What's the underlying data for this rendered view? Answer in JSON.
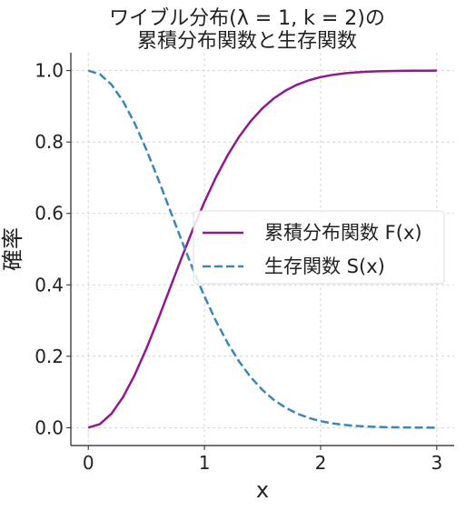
{
  "chart_data": {
    "type": "line",
    "title_lines": [
      "ワイブル分布(λ = 1, k = 2)の",
      "累積分布関数と生存関数"
    ],
    "xlabel": "x",
    "ylabel": "確率",
    "xlim": [
      -0.15,
      3.15
    ],
    "ylim": [
      -0.05,
      1.05
    ],
    "xticks": [
      0,
      1,
      2,
      3
    ],
    "xtick_labels": [
      "0",
      "1",
      "2",
      "3"
    ],
    "yticks": [
      0.0,
      0.2,
      0.4,
      0.6,
      0.8,
      1.0
    ],
    "ytick_labels": [
      "0.0",
      "0.2",
      "0.4",
      "0.6",
      "0.8",
      "1.0"
    ],
    "grid": true,
    "legend_position": "center-right",
    "x": [
      0,
      0.1,
      0.2,
      0.3,
      0.4,
      0.5,
      0.6,
      0.7,
      0.8,
      0.9,
      1.0,
      1.1,
      1.2,
      1.3,
      1.4,
      1.5,
      1.6,
      1.7,
      1.8,
      1.9,
      2.0,
      2.1,
      2.2,
      2.3,
      2.4,
      2.5,
      2.6,
      2.7,
      2.8,
      2.9,
      3.0
    ],
    "series": [
      {
        "name": "累積分布関数 F(x)",
        "color": "#8e1a8e",
        "style": "solid",
        "values": [
          0,
          0.00995,
          0.0392,
          0.0861,
          0.1479,
          0.2212,
          0.3023,
          0.3874,
          0.4727,
          0.5551,
          0.6321,
          0.7018,
          0.7631,
          0.8155,
          0.8591,
          0.8946,
          0.9227,
          0.9444,
          0.9608,
          0.973,
          0.9817,
          0.9878,
          0.9921,
          0.995,
          0.9968,
          0.9981,
          0.9988,
          0.9993,
          0.9996,
          0.9998,
          0.9999
        ]
      },
      {
        "name": "生存関数 S(x)",
        "color": "#3a87b8",
        "style": "dashed",
        "values": [
          1,
          0.99005,
          0.9608,
          0.9139,
          0.8521,
          0.7788,
          0.6977,
          0.6126,
          0.5273,
          0.4449,
          0.3679,
          0.2982,
          0.2369,
          0.1845,
          0.1409,
          0.1054,
          0.0773,
          0.0556,
          0.0392,
          0.027,
          0.0183,
          0.0122,
          0.0079,
          0.005,
          0.0032,
          0.0019,
          0.0012,
          0.0007,
          0.0004,
          0.0002,
          0.0001
        ]
      }
    ]
  }
}
